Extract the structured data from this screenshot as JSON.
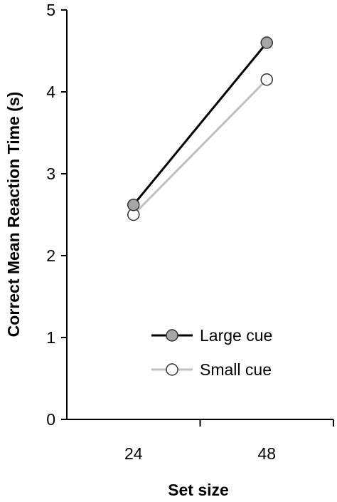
{
  "chart_data": {
    "type": "line",
    "xlabel": "Set size",
    "ylabel": "Correct Mean Reaction Time (s)",
    "categories": [
      "24",
      "48"
    ],
    "ylim": [
      0,
      5
    ],
    "yticks": [
      "0",
      "1",
      "2",
      "3",
      "4",
      "5"
    ],
    "grid": false,
    "legend_position": "bottom-right",
    "series": [
      {
        "name": "Large cue",
        "values": [
          2.62,
          4.6
        ],
        "line_color": "#000000",
        "marker_fill": "#a6a6a6",
        "marker_stroke": "#333333"
      },
      {
        "name": "Small cue",
        "values": [
          2.5,
          4.15
        ],
        "line_color": "#c0c0c0",
        "marker_fill": "#ffffff",
        "marker_stroke": "#333333"
      }
    ]
  }
}
